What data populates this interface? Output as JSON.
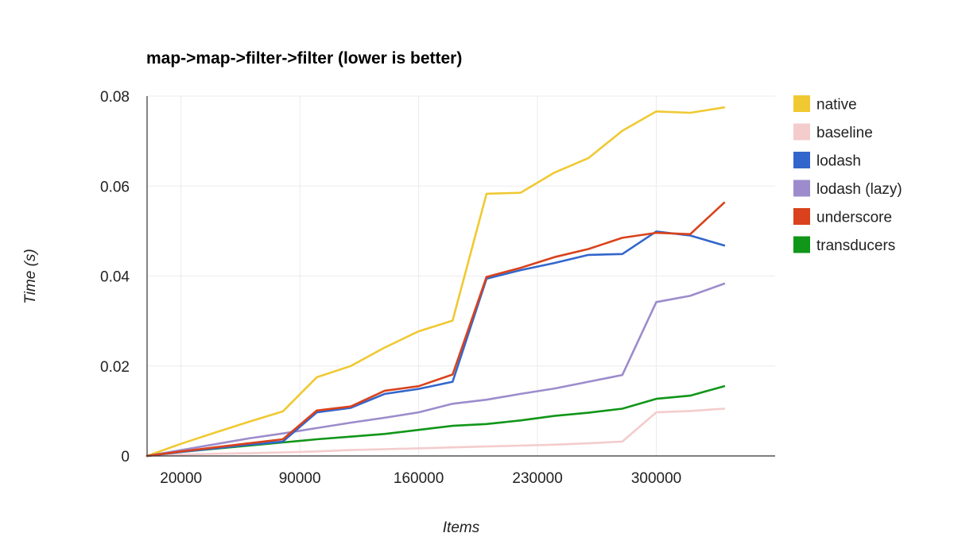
{
  "chart_data": {
    "type": "line",
    "title": "map->map->filter->filter (lower is better)",
    "xlabel": "Items",
    "ylabel": "Time (s)",
    "xlim": [
      0,
      370000
    ],
    "ylim": [
      0,
      0.08
    ],
    "x_ticks": [
      20000,
      90000,
      160000,
      230000,
      300000
    ],
    "x_tick_labels": [
      "20000",
      "90000",
      "160000",
      "230000",
      "300000"
    ],
    "y_ticks": [
      0,
      0.02,
      0.04,
      0.06,
      0.08
    ],
    "y_tick_labels": [
      "0",
      "0.02",
      "0.04",
      "0.06",
      "0.08"
    ],
    "grid": true,
    "legend_position": "right",
    "x": [
      0,
      20000,
      40000,
      60000,
      80000,
      100000,
      120000,
      140000,
      160000,
      180000,
      200000,
      220000,
      240000,
      260000,
      280000,
      300000,
      320000,
      340000
    ],
    "series": [
      {
        "name": "native",
        "color": "#f0c932",
        "values": [
          0,
          0.0027,
          0.0052,
          0.0076,
          0.0099,
          0.0175,
          0.02,
          0.0241,
          0.0277,
          0.0301,
          0.0583,
          0.0585,
          0.063,
          0.0662,
          0.0723,
          0.0766,
          0.0763,
          0.0775
        ]
      },
      {
        "name": "baseline",
        "color": "#f4cccc",
        "values": [
          0,
          0.0003,
          0.0005,
          0.0006,
          0.0008,
          0.001,
          0.0013,
          0.0015,
          0.0017,
          0.0019,
          0.0021,
          0.0023,
          0.0025,
          0.0028,
          0.0032,
          0.0097,
          0.01,
          0.0105
        ]
      },
      {
        "name": "lodash",
        "color": "#3366cc",
        "values": [
          0,
          0.0009,
          0.0017,
          0.0025,
          0.0032,
          0.0097,
          0.0107,
          0.0138,
          0.0149,
          0.0165,
          0.0394,
          0.0413,
          0.0429,
          0.0447,
          0.0449,
          0.0499,
          0.049,
          0.0468
        ]
      },
      {
        "name": "lodash (lazy)",
        "color": "#9c8ccc",
        "values": [
          0,
          0.0013,
          0.0026,
          0.0039,
          0.005,
          0.0062,
          0.0074,
          0.0085,
          0.0097,
          0.0116,
          0.0125,
          0.0138,
          0.015,
          0.0165,
          0.018,
          0.0342,
          0.0356,
          0.0383
        ]
      },
      {
        "name": "underscore",
        "color": "#d9421c",
        "values": [
          0,
          0.001,
          0.0019,
          0.0028,
          0.0037,
          0.0101,
          0.011,
          0.0145,
          0.0155,
          0.0181,
          0.0398,
          0.0418,
          0.0442,
          0.046,
          0.0485,
          0.0496,
          0.0493,
          0.0563
        ]
      },
      {
        "name": "transducers",
        "color": "#109618",
        "values": [
          0,
          0.0009,
          0.0016,
          0.0023,
          0.003,
          0.0037,
          0.0043,
          0.0049,
          0.0058,
          0.0067,
          0.0071,
          0.0079,
          0.0089,
          0.0096,
          0.0105,
          0.0127,
          0.0134,
          0.0155
        ]
      }
    ]
  }
}
